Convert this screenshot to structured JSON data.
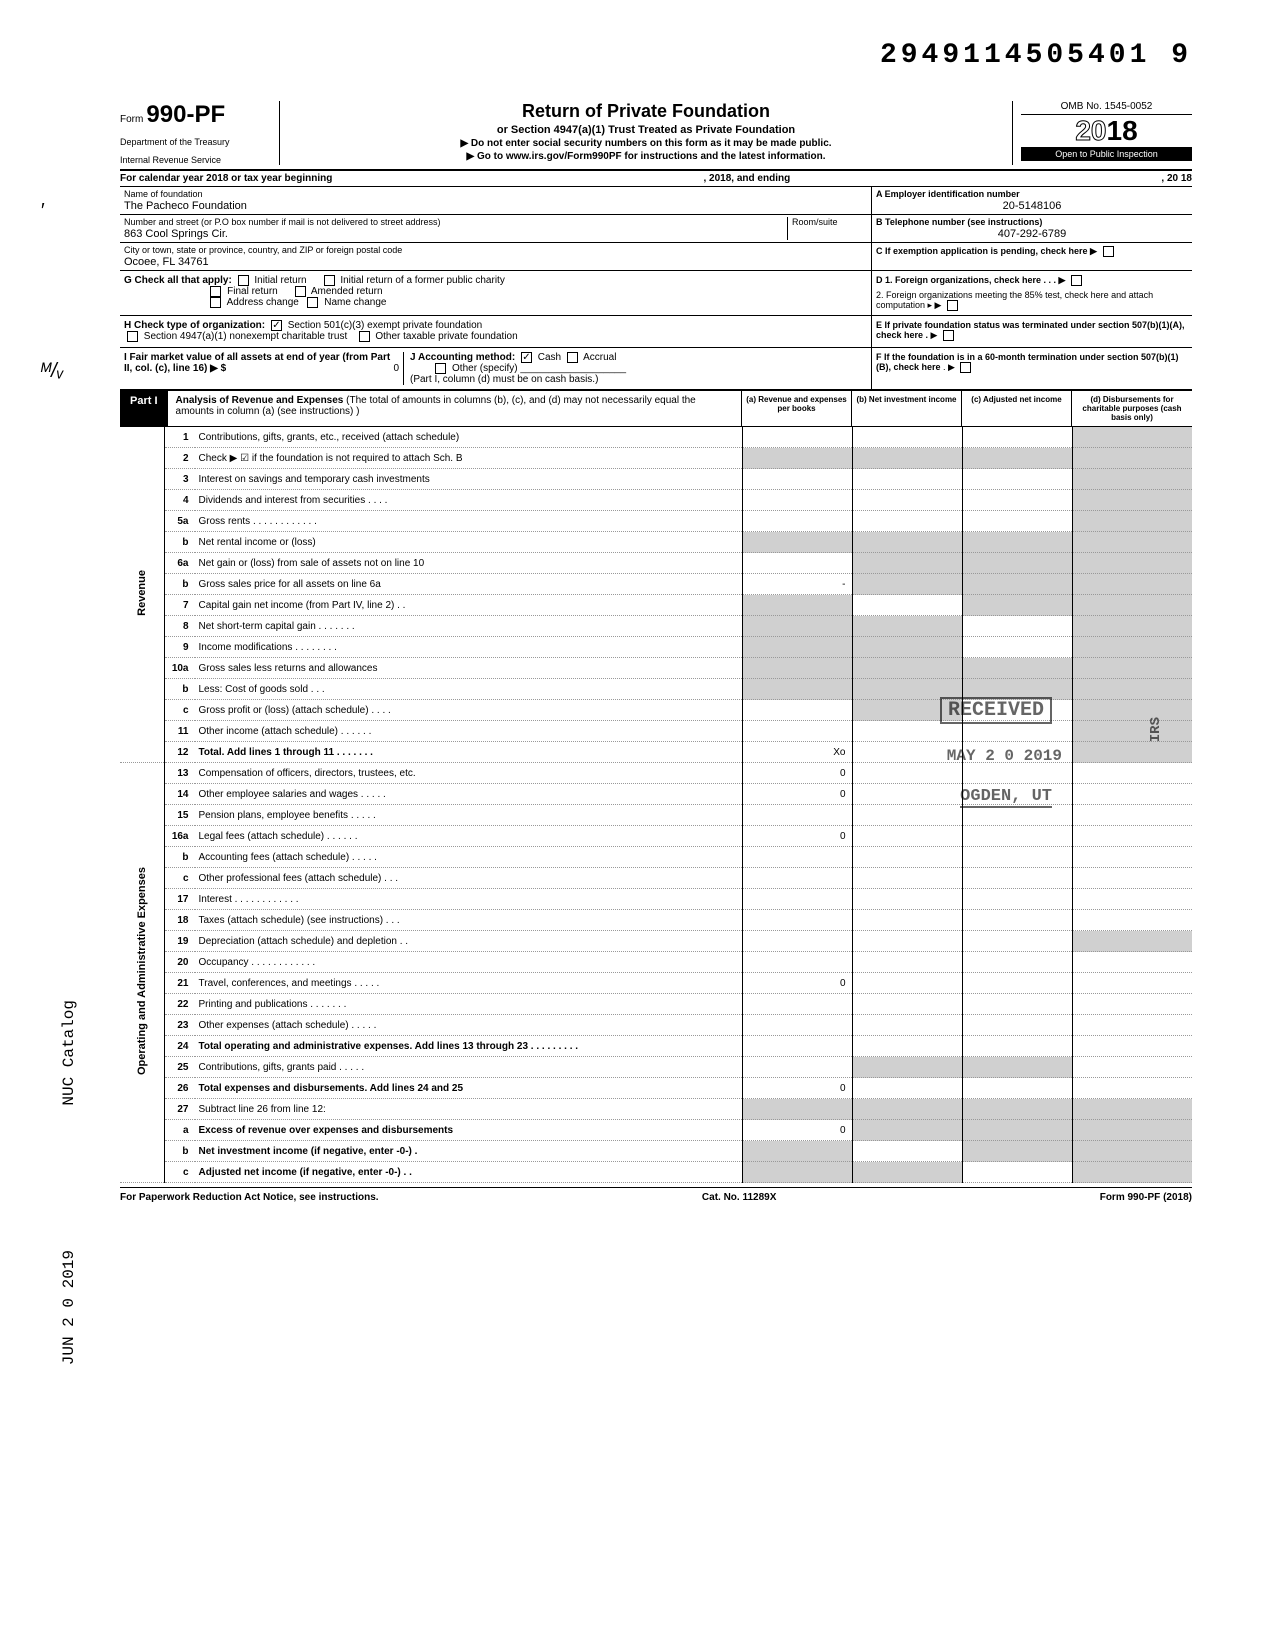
{
  "doc_number": "2949114505401 9",
  "form": {
    "prefix": "Form",
    "number": "990-PF",
    "dept1": "Department of the Treasury",
    "dept2": "Internal Revenue Service"
  },
  "title": {
    "main": "Return of Private Foundation",
    "sub": "or Section 4947(a)(1) Trust Treated as Private Foundation",
    "instr1": "▶ Do not enter social security numbers on this form as it may be made public.",
    "instr2": "▶ Go to www.irs.gov/Form990PF for instructions and the latest information."
  },
  "year_box": {
    "omb": "OMB No. 1545-0052",
    "year_plain": "2",
    "year_outline": "0",
    "year_bold": "18",
    "open": "Open to Public Inspection"
  },
  "cal_line": {
    "left": "For calendar year 2018 or tax year beginning",
    "mid": ", 2018, and ending",
    "right": ", 20    18"
  },
  "id_block": {
    "name_label": "Name of foundation",
    "name": "The Pacheco Foundation",
    "addr_label": "Number and street (or P.O box number if mail is not delivered to street address)",
    "addr": "863 Cool Springs Cir.",
    "room_label": "Room/suite",
    "city_label": "City or town, state or province, country, and ZIP or foreign postal code",
    "city": "Ocoee, FL 34761",
    "a_label": "A  Employer identification number",
    "a_val": "20-5148106",
    "b_label": "B  Telephone number (see instructions)",
    "b_val": "407-292-6789",
    "c_label": "C  If exemption application is pending, check here ▶"
  },
  "g_block": {
    "label": "G  Check all that apply:",
    "opts": [
      "Initial return",
      "Initial return of a former public charity",
      "Final return",
      "Amended return",
      "Address change",
      "Name change"
    ],
    "d1": "D 1. Foreign organizations, check here .   .   . ▶",
    "d2": "2. Foreign organizations meeting the 85% test, check here and attach computation   ▸  ▶",
    "e": "E  If private foundation status was terminated under section 507(b)(1)(A), check here  .",
    "f": "F  If the foundation is in a 60-month termination under section 507(b)(1)(B), check here"
  },
  "h_block": {
    "label": "H  Check type of organization:",
    "opt1": "Section 501(c)(3) exempt private foundation",
    "opt2a": "Section 4947(a)(1) nonexempt charitable trust",
    "opt2b": "Other taxable private foundation"
  },
  "i_block": {
    "label": "I   Fair market value of all assets at end of year  (from Part II, col. (c), line 16) ▶ $",
    "val": "0",
    "j_label": "J   Accounting method:",
    "j_opts": [
      "Cash",
      "Accrual"
    ],
    "j_other": "Other (specify)",
    "j_note": "(Part I, column (d) must be on cash basis.)"
  },
  "part1": {
    "label": "Part I",
    "title": "Analysis of Revenue and Expenses",
    "note": "(The total of amounts in columns (b), (c), and (d) may not necessarily equal the amounts in column (a) (see instructions) )",
    "cols": {
      "a": "(a) Revenue and expenses per books",
      "b": "(b) Net investment income",
      "c": "(c) Adjusted net income",
      "d": "(d) Disbursements for charitable purposes (cash basis only)"
    }
  },
  "sections": {
    "revenue": "Revenue",
    "expenses": "Operating and Administrative Expenses"
  },
  "rows": [
    {
      "n": "1",
      "t": "Contributions, gifts, grants, etc., received (attach schedule)",
      "a": "",
      "b": "",
      "c": "",
      "d": "shaded"
    },
    {
      "n": "2",
      "t": "Check ▶ ☑ if the foundation is not required to attach Sch. B",
      "a": "shaded",
      "b": "shaded",
      "c": "shaded",
      "d": "shaded"
    },
    {
      "n": "3",
      "t": "Interest on savings and temporary cash investments",
      "a": "",
      "b": "",
      "c": "",
      "d": "shaded"
    },
    {
      "n": "4",
      "t": "Dividends and interest from securities   .   .   .   .",
      "a": "",
      "b": "",
      "c": "",
      "d": "shaded"
    },
    {
      "n": "5a",
      "t": "Gross rents .   .   .   .   .   .   .   .   .   .   .   .",
      "a": "",
      "b": "",
      "c": "",
      "d": "shaded"
    },
    {
      "n": "b",
      "t": "Net rental income or (loss)",
      "a": "shaded",
      "b": "shaded",
      "c": "shaded",
      "d": "shaded"
    },
    {
      "n": "6a",
      "t": "Net gain or (loss) from sale of assets not on line 10",
      "a": "",
      "b": "shaded",
      "c": "shaded",
      "d": "shaded"
    },
    {
      "n": "b",
      "t": "Gross sales price for all assets on line 6a",
      "a": "-",
      "b": "shaded",
      "c": "shaded",
      "d": "shaded"
    },
    {
      "n": "7",
      "t": "Capital gain net income (from Part IV, line 2)  .   .",
      "a": "shaded",
      "b": "",
      "c": "shaded",
      "d": "shaded"
    },
    {
      "n": "8",
      "t": "Net short-term capital gain .   .   .   .   .   .   .",
      "a": "shaded",
      "b": "shaded",
      "c": "",
      "d": "shaded"
    },
    {
      "n": "9",
      "t": "Income modifications     .   .   .   .   .   .   .   .",
      "a": "shaded",
      "b": "shaded",
      "c": "",
      "d": "shaded"
    },
    {
      "n": "10a",
      "t": "Gross sales less returns and allowances",
      "a": "shaded",
      "b": "shaded",
      "c": "shaded",
      "d": "shaded"
    },
    {
      "n": "b",
      "t": "Less: Cost of goods sold   .   .   .",
      "a": "shaded",
      "b": "shaded",
      "c": "shaded",
      "d": "shaded"
    },
    {
      "n": "c",
      "t": "Gross profit or (loss) (attach schedule)   .   .   .   .",
      "a": "",
      "b": "shaded",
      "c": "",
      "d": "shaded"
    },
    {
      "n": "11",
      "t": "Other income (attach schedule)   .   .   .   .   .   .",
      "a": "",
      "b": "",
      "c": "",
      "d": "shaded"
    },
    {
      "n": "12",
      "t": "Total. Add lines 1 through 11  .   .   .   .   .   .   .",
      "a": "Xo",
      "b": "",
      "c": "",
      "d": "shaded",
      "bold": true
    },
    {
      "n": "13",
      "t": "Compensation of officers, directors, trustees, etc.",
      "a": "0",
      "b": "",
      "c": "",
      "d": ""
    },
    {
      "n": "14",
      "t": "Other employee salaries and wages .   .   .   .   .",
      "a": "0",
      "b": "",
      "c": "",
      "d": ""
    },
    {
      "n": "15",
      "t": "Pension plans, employee benefits    .   .   .   .   .",
      "a": "",
      "b": "",
      "c": "",
      "d": ""
    },
    {
      "n": "16a",
      "t": "Legal fees (attach schedule)    .   .   .   .   .   .",
      "a": "0",
      "b": "",
      "c": "",
      "d": ""
    },
    {
      "n": "b",
      "t": "Accounting fees (attach schedule)   .   .   .   .   .",
      "a": "",
      "b": "",
      "c": "",
      "d": ""
    },
    {
      "n": "c",
      "t": "Other professional fees (attach schedule)  .   .   .",
      "a": "",
      "b": "",
      "c": "",
      "d": ""
    },
    {
      "n": "17",
      "t": "Interest   .   .   .   .   .   .   .   .   .   .   .   .",
      "a": "",
      "b": "",
      "c": "",
      "d": ""
    },
    {
      "n": "18",
      "t": "Taxes (attach schedule) (see instructions)  .   .   .",
      "a": "",
      "b": "",
      "c": "",
      "d": ""
    },
    {
      "n": "19",
      "t": "Depreciation (attach schedule) and depletion .   .",
      "a": "",
      "b": "",
      "c": "",
      "d": "shaded"
    },
    {
      "n": "20",
      "t": "Occupancy .   .   .   .   .   .   .   .   .   .   .   .",
      "a": "",
      "b": "",
      "c": "",
      "d": ""
    },
    {
      "n": "21",
      "t": "Travel, conferences, and meetings   .   .   .   .   .",
      "a": "0",
      "b": "",
      "c": "",
      "d": ""
    },
    {
      "n": "22",
      "t": "Printing and publications    .   .   .   .   .   .   .",
      "a": "",
      "b": "",
      "c": "",
      "d": ""
    },
    {
      "n": "23",
      "t": "Other expenses (attach schedule)    .   .   .   .   .",
      "a": "",
      "b": "",
      "c": "",
      "d": ""
    },
    {
      "n": "24",
      "t": "Total operating and administrative expenses. Add lines 13 through 23 .   .   .   .   .   .   .   .   .",
      "a": "",
      "b": "",
      "c": "",
      "d": "",
      "bold": true
    },
    {
      "n": "25",
      "t": "Contributions, gifts, grants paid    .   .   .   .   .",
      "a": "",
      "b": "shaded",
      "c": "shaded",
      "d": ""
    },
    {
      "n": "26",
      "t": "Total expenses and disbursements. Add lines 24 and 25",
      "a": "0",
      "b": "",
      "c": "",
      "d": "",
      "bold": true
    },
    {
      "n": "27",
      "t": "Subtract line 26 from line 12:",
      "a": "shaded",
      "b": "shaded",
      "c": "shaded",
      "d": "shaded"
    },
    {
      "n": "a",
      "t": "Excess of revenue over expenses and disbursements",
      "a": "0",
      "b": "shaded",
      "c": "shaded",
      "d": "shaded",
      "bold": true
    },
    {
      "n": "b",
      "t": "Net investment income (if negative, enter -0-)  .",
      "a": "shaded",
      "b": "",
      "c": "shaded",
      "d": "shaded",
      "bold": true
    },
    {
      "n": "c",
      "t": "Adjusted net income (if negative, enter -0-)  .   .",
      "a": "shaded",
      "b": "shaded",
      "c": "",
      "d": "shaded",
      "bold": true
    }
  ],
  "stamps": {
    "received": "RECEIVED",
    "date": "MAY 2 0 2019",
    "ogden": "OGDEN, UT",
    "irs_vert": "IRS",
    "side1": "NUC Catalog",
    "side2": "JUN 2 0 2019"
  },
  "footer": {
    "left": "For Paperwork Reduction Act Notice, see instructions.",
    "mid": "Cat. No. 11289X",
    "right": "Form 990-PF (2018)"
  },
  "colors": {
    "shaded": "#d0d0d0",
    "black": "#000000",
    "white": "#ffffff"
  }
}
